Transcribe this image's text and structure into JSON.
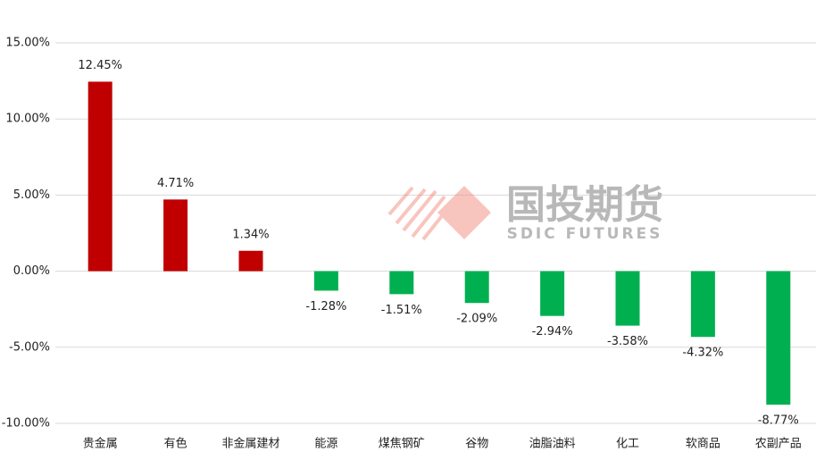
{
  "chart_data": {
    "type": "bar",
    "categories": [
      "贵金属",
      "有色",
      "非金属建材",
      "能源",
      "煤焦钢矿",
      "谷物",
      "油脂油料",
      "化工",
      "软商品",
      "农副产品"
    ],
    "values": [
      12.45,
      4.71,
      1.34,
      -1.28,
      -1.51,
      -2.09,
      -2.94,
      -3.58,
      -4.32,
      -8.77
    ],
    "value_labels": [
      "12.45%",
      "4.71%",
      "1.34%",
      "-1.28%",
      "-1.51%",
      "-2.09%",
      "-2.94%",
      "-3.58%",
      "-4.32%",
      "-8.77%"
    ],
    "positive_color": "#c00000",
    "negative_color": "#00b050",
    "ylim": [
      -10,
      15
    ],
    "yticks": [
      {
        "value": -10,
        "label": "-10.00%"
      },
      {
        "value": -5,
        "label": "-5.00%"
      },
      {
        "value": 0,
        "label": "0.00%"
      },
      {
        "value": 5,
        "label": "5.00%"
      },
      {
        "value": 10,
        "label": "10.00%"
      },
      {
        "value": 15,
        "label": "15.00%"
      }
    ],
    "grid": true,
    "watermark": {
      "title": "国投期货",
      "subtitle": "SDIC FUTURES"
    }
  }
}
